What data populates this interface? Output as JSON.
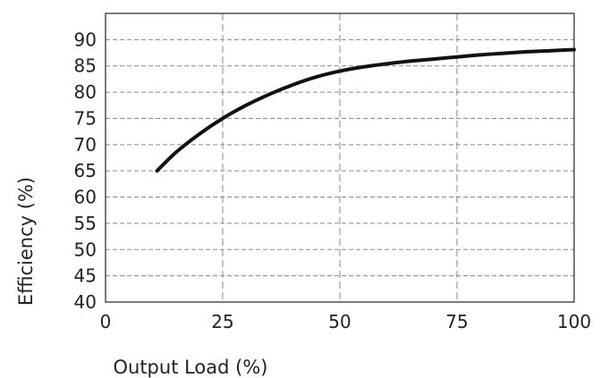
{
  "chart_data": {
    "type": "line",
    "xlabel": "Output Load (%)",
    "ylabel": "Efficiency (%)",
    "xlim": [
      0,
      100
    ],
    "ylim": [
      40,
      95
    ],
    "x_ticks": [
      0,
      25,
      50,
      75,
      100
    ],
    "y_ticks": [
      40,
      45,
      50,
      55,
      60,
      65,
      70,
      75,
      80,
      85,
      90
    ],
    "grid": true,
    "legend": "none",
    "series": [
      {
        "x": [
          11,
          15,
          20,
          25,
          30,
          35,
          40,
          45,
          50,
          55,
          60,
          65,
          70,
          75,
          80,
          85,
          90,
          95,
          100
        ],
        "values": [
          65,
          68.5,
          72,
          75,
          77.5,
          79.6,
          81.4,
          82.9,
          84,
          84.8,
          85.4,
          85.9,
          86.3,
          86.7,
          87.1,
          87.4,
          87.7,
          87.9,
          88.1
        ],
        "color": "#111111"
      }
    ]
  }
}
